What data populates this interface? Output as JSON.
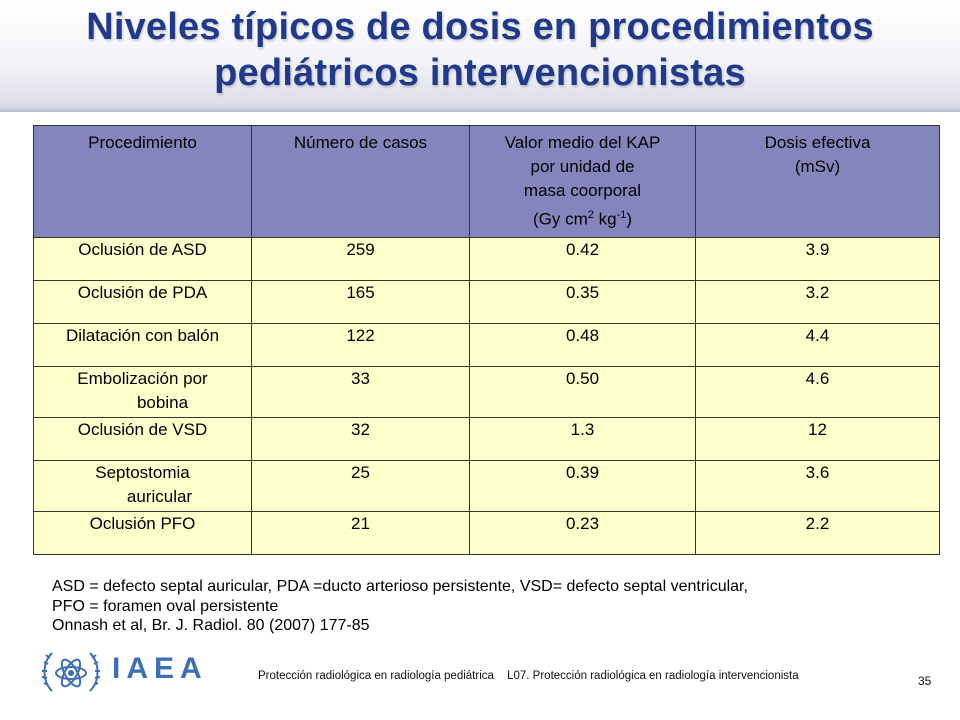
{
  "slide": {
    "title_line1": "Niveles típicos de dosis en procedimientos",
    "title_line2": "pediátricos intervencionistas"
  },
  "table": {
    "headers": {
      "procedure": "Procedimiento",
      "cases": "Número de casos",
      "kap_l1": "Valor medio del KAP",
      "kap_l2": "por unidad de",
      "kap_l3": "masa coorporal",
      "kap_l4_pre": "(Gy cm",
      "kap_l4_sup1": "2",
      "kap_l4_mid": " kg",
      "kap_l4_sup2": "-1",
      "kap_l4_post": ")",
      "dose_l1": "Dosis efectiva",
      "dose_l2": "(mSv)"
    },
    "rows": [
      {
        "procedure": "Oclusión de ASD",
        "cases": "259",
        "kap": "0.42",
        "dose": "3.9"
      },
      {
        "procedure": "Oclusión de PDA",
        "cases": "165",
        "kap": "0.35",
        "dose": "3.2"
      },
      {
        "procedure": "Dilatación con balón",
        "cases": "122",
        "kap": "0.48",
        "dose": "4.4"
      },
      {
        "procedure_l1": "Embolización por",
        "procedure_l2": "bobina",
        "cases": "33",
        "kap": "0.50",
        "dose": "4.6"
      },
      {
        "procedure": "Oclusión de VSD",
        "cases": "32",
        "kap": "1.3",
        "dose": "12"
      },
      {
        "procedure_l1": "Septostomia",
        "procedure_l2": "auricular",
        "cases": "25",
        "kap": "0.39",
        "dose": "3.6"
      },
      {
        "procedure": "Oclusión PFO",
        "cases": "21",
        "kap": "0.23",
        "dose": "2.2"
      }
    ]
  },
  "notes": {
    "line1": "ASD = defecto septal auricular, PDA =ducto arterioso persistente, VSD= defecto septal ventricular,",
    "line2": "PFO = foramen oval persistente",
    "line3": "Onnash et al, Br. J. Radiol. 80 (2007) 177-85"
  },
  "footer": {
    "org": "IAEA",
    "course": "Protección radiológica en radiología pediátrica",
    "lesson": "L07. Protección radiológica en radiología intervencionista",
    "page": "35"
  },
  "colors": {
    "title": "#1f3a8a",
    "header_bg": "#8585bd",
    "cell_bg": "#ffffcc",
    "iaea_blue": "#3d6fb6"
  }
}
